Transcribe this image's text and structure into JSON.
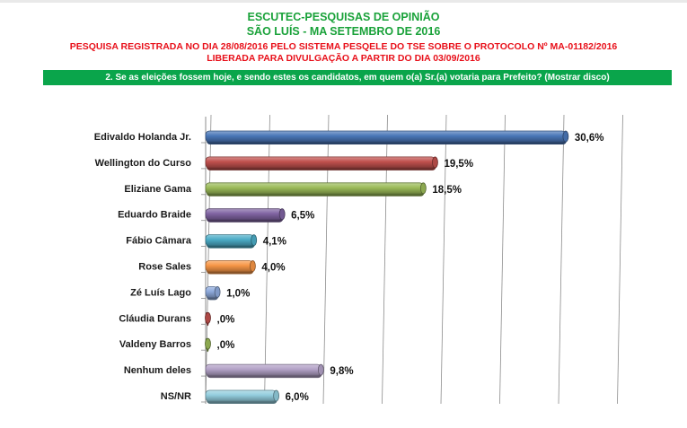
{
  "header": {
    "title": "ESCUTEC-PESQUISAS DE OPINIÃO",
    "subtitle": "SÃO LUÍS - MA SETEMBRO DE 2016",
    "registration": "PESQUISA REGISTRADA NO DIA 28/08/2016 PELO SISTEMA PESQELE DO TSE SOBRE O PROTOCOLO Nº MA-01182/2016",
    "release": "LIBERADA PARA DIVULGAÇÃO A PARTIR DO DIA 03/09/2016",
    "question": "2. Se as eleições fossem hoje, e sendo estes os candidatos, em quem o(a) Sr.(a) votaria para Prefeito? (Mostrar disco)"
  },
  "colors": {
    "title_green": "#1aa23a",
    "registration_red": "#e8101a",
    "question_bar": "#0aa54b"
  },
  "chart_data": {
    "type": "bar",
    "orientation": "horizontal",
    "style": "3d",
    "categories": [
      "Edivaldo Holanda Jr.",
      "Wellington do Curso",
      "Eliziane Gama",
      "Eduardo Braide",
      "Fábio Câmara",
      "Rose Sales",
      "Zé Luís Lago",
      "Cláudia Durans",
      "Valdeny Barros",
      "Nenhum deles",
      "NS/NR"
    ],
    "values": [
      30.6,
      19.5,
      18.5,
      6.5,
      4.1,
      4.0,
      1.0,
      0.0,
      0.0,
      9.8,
      6.0
    ],
    "labels": [
      "30,6%",
      "19,5%",
      "18,5%",
      "6,5%",
      "4,1%",
      "4,0%",
      "1,0%",
      ",0%",
      ",0%",
      "9,8%",
      "6,0%"
    ],
    "colors": [
      "#4a77b8",
      "#c0504d",
      "#9bbb59",
      "#8064a2",
      "#4bacc6",
      "#f79646",
      "#8eaadc",
      "#c0504d",
      "#9bbb59",
      "#b3a2c7",
      "#93cddd"
    ],
    "xlim": [
      0,
      35
    ],
    "grid": true,
    "legend": "none"
  }
}
